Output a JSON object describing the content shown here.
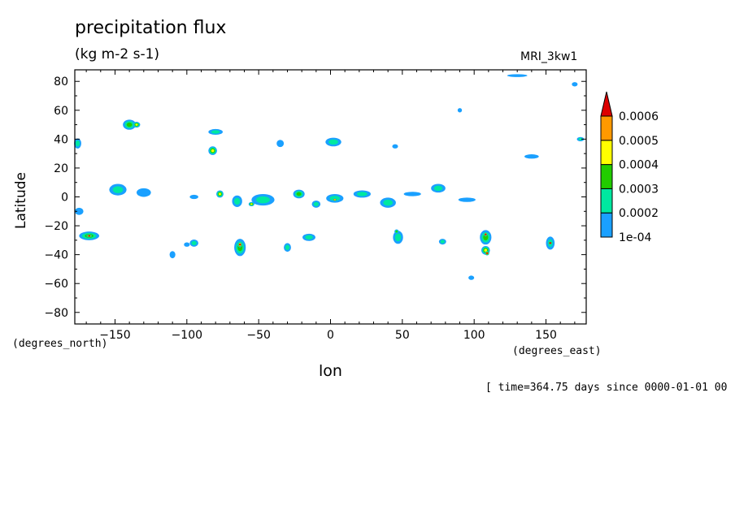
{
  "chart_data": {
    "type": "heatmap",
    "title": "precipitation flux",
    "subtitle": "(kg m-2 s-1)",
    "model_label": "MRI_3kw1",
    "xlabel": "lon",
    "ylabel": "Latitude",
    "x_units": "(degrees_east)",
    "y_units": "(degrees_north)",
    "time_label": "[ time=364.75 days since 0000-01-01 00",
    "xlim": [
      -178,
      178
    ],
    "ylim": [
      -88,
      88
    ],
    "x_ticks": [
      -150,
      -100,
      -50,
      0,
      50,
      100,
      150
    ],
    "y_ticks": [
      -80,
      -60,
      -40,
      -20,
      0,
      20,
      40,
      60,
      80
    ],
    "grid": false,
    "colorbar": {
      "position": "right",
      "levels": [
        "1e-04",
        "0.0002",
        "0.0003",
        "0.0004",
        "0.0005",
        "0.0006"
      ],
      "colors": [
        "#1aa0ff",
        "#00e8a0",
        "#22cc00",
        "#ffff00",
        "#ff9900",
        "#dd0000"
      ]
    },
    "cells": [
      {
        "lon": -140,
        "lat": 50,
        "lon_w": 9,
        "lat_w": 7,
        "level": 3
      },
      {
        "lon": -135,
        "lat": 50,
        "lon_w": 5,
        "lat_w": 4,
        "level": 4
      },
      {
        "lon": -148,
        "lat": 5,
        "lon_w": 12,
        "lat_w": 8,
        "level": 2
      },
      {
        "lon": -130,
        "lat": 3,
        "lon_w": 10,
        "lat_w": 6,
        "level": 1
      },
      {
        "lon": -168,
        "lat": -27,
        "lon_w": 14,
        "lat_w": 6,
        "level": 3
      },
      {
        "lon": -168,
        "lat": -27,
        "lon_w": 4,
        "lat_w": 2,
        "level": 6
      },
      {
        "lon": -176,
        "lat": 37,
        "lon_w": 5,
        "lat_w": 7,
        "level": 2
      },
      {
        "lon": -175,
        "lat": -10,
        "lon_w": 6,
        "lat_w": 5,
        "level": 1
      },
      {
        "lon": -80,
        "lat": 45,
        "lon_w": 10,
        "lat_w": 4,
        "level": 2
      },
      {
        "lon": -82,
        "lat": 32,
        "lon_w": 6,
        "lat_w": 6,
        "level": 4
      },
      {
        "lon": -77,
        "lat": 2,
        "lon_w": 5,
        "lat_w": 5,
        "level": 4
      },
      {
        "lon": -95,
        "lat": 0,
        "lon_w": 6,
        "lat_w": 3,
        "level": 1
      },
      {
        "lon": -65,
        "lat": -3,
        "lon_w": 7,
        "lat_w": 8,
        "level": 2
      },
      {
        "lon": -47,
        "lat": -2,
        "lon_w": 16,
        "lat_w": 8,
        "level": 2
      },
      {
        "lon": -55,
        "lat": -5,
        "lon_w": 4,
        "lat_w": 3,
        "level": 4
      },
      {
        "lon": -63,
        "lat": -35,
        "lon_w": 8,
        "lat_w": 12,
        "level": 3
      },
      {
        "lon": -63,
        "lat": -33,
        "lon_w": 3,
        "lat_w": 4,
        "level": 6
      },
      {
        "lon": -95,
        "lat": -32,
        "lon_w": 6,
        "lat_w": 5,
        "level": 2
      },
      {
        "lon": -100,
        "lat": -33,
        "lon_w": 4,
        "lat_w": 3,
        "level": 1
      },
      {
        "lon": -35,
        "lat": 37,
        "lon_w": 5,
        "lat_w": 5,
        "level": 1
      },
      {
        "lon": 2,
        "lat": 38,
        "lon_w": 11,
        "lat_w": 6,
        "level": 2
      },
      {
        "lon": -22,
        "lat": 2,
        "lon_w": 8,
        "lat_w": 6,
        "level": 3
      },
      {
        "lon": 3,
        "lat": -1,
        "lon_w": 12,
        "lat_w": 6,
        "level": 2
      },
      {
        "lon": 3,
        "lat": -2,
        "lon_w": 3,
        "lat_w": 2,
        "level": 5
      },
      {
        "lon": -10,
        "lat": -5,
        "lon_w": 6,
        "lat_w": 5,
        "level": 2
      },
      {
        "lon": -15,
        "lat": -28,
        "lon_w": 9,
        "lat_w": 5,
        "level": 2
      },
      {
        "lon": -30,
        "lat": -35,
        "lon_w": 5,
        "lat_w": 6,
        "level": 2
      },
      {
        "lon": 22,
        "lat": 2,
        "lon_w": 12,
        "lat_w": 5,
        "level": 2
      },
      {
        "lon": 40,
        "lat": -4,
        "lon_w": 11,
        "lat_w": 7,
        "level": 2
      },
      {
        "lon": 57,
        "lat": 2,
        "lon_w": 12,
        "lat_w": 3,
        "level": 1
      },
      {
        "lon": 75,
        "lat": 6,
        "lon_w": 10,
        "lat_w": 6,
        "level": 2
      },
      {
        "lon": 95,
        "lat": -2,
        "lon_w": 12,
        "lat_w": 3,
        "level": 1
      },
      {
        "lon": 47,
        "lat": -28,
        "lon_w": 7,
        "lat_w": 9,
        "level": 2
      },
      {
        "lon": 46,
        "lat": -24,
        "lon_w": 3,
        "lat_w": 3,
        "level": 3
      },
      {
        "lon": 78,
        "lat": -31,
        "lon_w": 5,
        "lat_w": 4,
        "level": 2
      },
      {
        "lon": 45,
        "lat": 35,
        "lon_w": 4,
        "lat_w": 3,
        "level": 1
      },
      {
        "lon": 108,
        "lat": -28,
        "lon_w": 8,
        "lat_w": 10,
        "level": 3
      },
      {
        "lon": 108,
        "lat": -37,
        "lon_w": 6,
        "lat_w": 6,
        "level": 4
      },
      {
        "lon": 108,
        "lat": -26,
        "lon_w": 2,
        "lat_w": 3,
        "level": 6
      },
      {
        "lon": 109,
        "lat": -39,
        "lon_w": 3,
        "lat_w": 3,
        "level": 6
      },
      {
        "lon": 153,
        "lat": -32,
        "lon_w": 6,
        "lat_w": 9,
        "level": 2
      },
      {
        "lon": 153,
        "lat": -32,
        "lon_w": 3,
        "lat_w": 2,
        "level": 6
      },
      {
        "lon": 98,
        "lat": -56,
        "lon_w": 4,
        "lat_w": 3,
        "level": 1
      },
      {
        "lon": 140,
        "lat": 28,
        "lon_w": 10,
        "lat_w": 3,
        "level": 1
      },
      {
        "lon": 174,
        "lat": 40,
        "lon_w": 5,
        "lat_w": 3,
        "level": 2
      },
      {
        "lon": 130,
        "lat": 84,
        "lon_w": 14,
        "lat_w": 2,
        "level": 1
      },
      {
        "lon": 170,
        "lat": 78,
        "lon_w": 4,
        "lat_w": 3,
        "level": 1
      },
      {
        "lon": 90,
        "lat": 60,
        "lon_w": 3,
        "lat_w": 3,
        "level": 1
      },
      {
        "lon": -110,
        "lat": -40,
        "lon_w": 4,
        "lat_w": 5,
        "level": 1
      }
    ]
  }
}
